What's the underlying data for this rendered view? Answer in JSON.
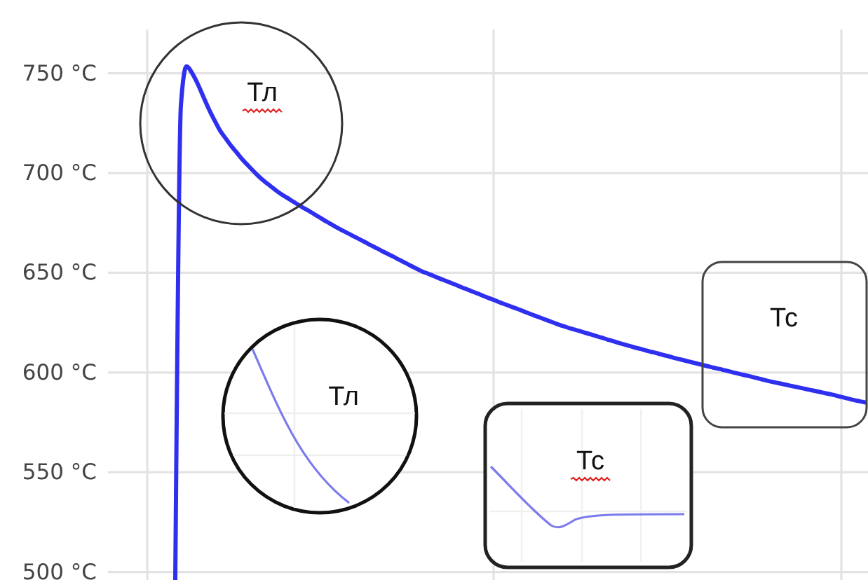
{
  "chart_data": {
    "type": "line",
    "categories": [
      null,
      null,
      null,
      null,
      null,
      null,
      null,
      null,
      null,
      null,
      null,
      null,
      null,
      null,
      null,
      null,
      null,
      null,
      null,
      null,
      null,
      null,
      null,
      null,
      null,
      null,
      null,
      null,
      null,
      null,
      null,
      null,
      null,
      null,
      null,
      null,
      null,
      null,
      null,
      null,
      null,
      null,
      null,
      null,
      null,
      null,
      null,
      null,
      null,
      null,
      null,
      null,
      null,
      null,
      null,
      null,
      null,
      null,
      null,
      null,
      null,
      null,
      null,
      null,
      null,
      null,
      null,
      null,
      null,
      null,
      null,
      null,
      null,
      null,
      null,
      null,
      null,
      null,
      null,
      null,
      null,
      null,
      null,
      null,
      null,
      null,
      null,
      null,
      null,
      null,
      null,
      null,
      null,
      null,
      null,
      null,
      null,
      null,
      null,
      null,
      null,
      null,
      null,
      null,
      null,
      null,
      null,
      null,
      null,
      null,
      null,
      null,
      null,
      null,
      null,
      null,
      null,
      null,
      null,
      null,
      null,
      null,
      null,
      null,
      null,
      null,
      null,
      null,
      null,
      null,
      null,
      null,
      null,
      null,
      null
    ],
    "series": [
      {
        "color": "#2f2ff0",
        "values": [
          null,
          null,
          null,
          null,
          null,
          null,
          null,
          null,
          null,
          null,
          null,
          496,
          733.8,
          753.5,
          750.1,
          744.7,
          738.3,
          732,
          726.4,
          721.2,
          717.3,
          713.5,
          710.1,
          706.7,
          703.7,
          700.8,
          698,
          695.6,
          693.4,
          691.2,
          689.2,
          687.5,
          685.7,
          684,
          682.3,
          680.7,
          679,
          677.3,
          675.6,
          674,
          672.4,
          670.9,
          669.5,
          668,
          666.6,
          665.1,
          663.6,
          662.2,
          660.7,
          659.3,
          657.9,
          656.4,
          655,
          653.5,
          652.1,
          650.7,
          649.6,
          648.5,
          647.3,
          646.2,
          645.1,
          644,
          642.8,
          641.7,
          640.6,
          639.5,
          638.3,
          637.2,
          636.2,
          635,
          634,
          632.9,
          631.9,
          630.8,
          629.7,
          628.6,
          627.6,
          626.5,
          625.5,
          624.4,
          623.4,
          622.5,
          621.7,
          620.9,
          620,
          619.2,
          618.3,
          617.5,
          616.6,
          615.8,
          614.9,
          614.1,
          613.3,
          612.5,
          611.8,
          611,
          610.3,
          609.6,
          608.8,
          608.1,
          607.3,
          606.6,
          605.9,
          605.2,
          604.5,
          603.8,
          603.1,
          602.4,
          601.8,
          601.1,
          600.4,
          599.7,
          599,
          598.4,
          597.7,
          597,
          596.3,
          595.6,
          595,
          594.4,
          593.8,
          593.2,
          592.6,
          592,
          591.4,
          590.8,
          590.2,
          589.6,
          589,
          588.3,
          587.6,
          586.9,
          586.2,
          585.6,
          585
        ]
      }
    ],
    "ylim": [
      496,
      772
    ],
    "yticks": [
      {
        "value": 500,
        "label": "500 °C"
      },
      {
        "value": 550,
        "label": "550 °C"
      },
      {
        "value": 600,
        "label": "600 °C"
      },
      {
        "value": 650,
        "label": "650 °C"
      },
      {
        "value": 700,
        "label": "700 °C"
      },
      {
        "value": 750,
        "label": "750 °C"
      }
    ],
    "grid": true,
    "tick_labels": "y",
    "annotations": [
      "Тл",
      "Тл",
      "Тс",
      "Тс"
    ]
  }
}
